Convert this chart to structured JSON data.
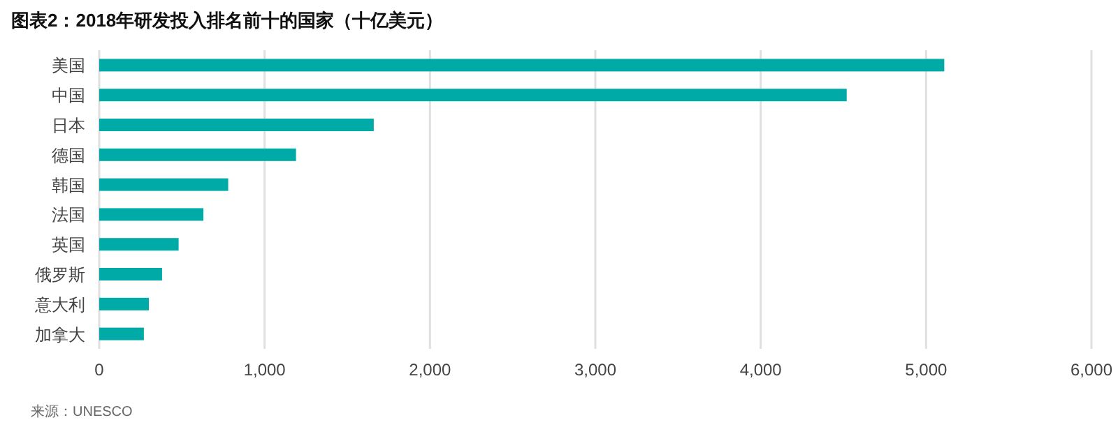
{
  "chart_data": {
    "type": "bar",
    "orientation": "horizontal",
    "title": "图表2：2018年研发投入排名前十的国家（十亿美元）",
    "categories": [
      "美国",
      "中国",
      "日本",
      "德国",
      "韩国",
      "法国",
      "英国",
      "俄罗斯",
      "意大利",
      "加拿大"
    ],
    "values": [
      5110,
      4520,
      1660,
      1190,
      780,
      630,
      480,
      380,
      300,
      270
    ],
    "color": "#00aaa7",
    "xlim": [
      0,
      6000
    ],
    "xticks": [
      {
        "value": 0,
        "label": "0"
      },
      {
        "value": 1000,
        "label": "1,000"
      },
      {
        "value": 2000,
        "label": "2,000"
      },
      {
        "value": 3000,
        "label": "3,000"
      },
      {
        "value": 4000,
        "label": "4,000"
      },
      {
        "value": 5000,
        "label": "5,000"
      },
      {
        "value": 6000,
        "label": "6,000"
      }
    ],
    "grid": "x",
    "annotations": [
      "来源：UNESCO"
    ]
  }
}
